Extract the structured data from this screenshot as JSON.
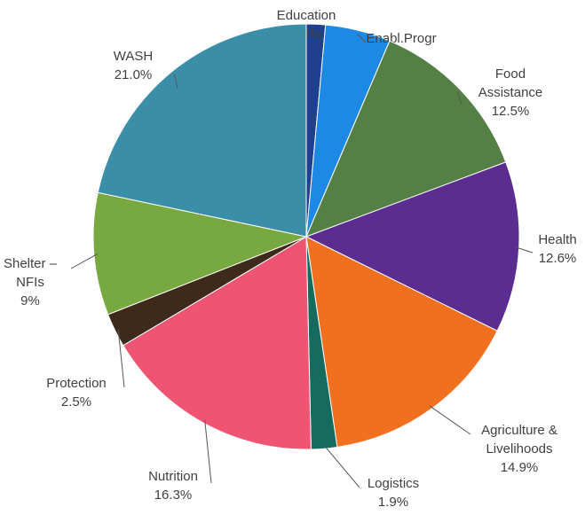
{
  "chart_data": {
    "type": "pie",
    "categories": [
      "Education",
      "Enabl.Progr",
      "Food\nAssistance",
      "Health",
      "Agriculture &\nLivelihoods",
      "Logistics",
      "Nutrition",
      "Protection",
      "Shelter –\nNFIs",
      "WASH"
    ],
    "values": [
      1.4,
      4.8,
      12.5,
      12.6,
      14.9,
      1.9,
      16.3,
      2.5,
      9,
      21.0
    ],
    "value_labels": [
      "1.4%",
      "4.8%",
      "12.5%",
      "12.6%",
      "14.9%",
      "1.9%",
      "16.3%",
      "2.5%",
      "9%",
      "21.0%"
    ],
    "colors": [
      "#1f3f8f",
      "#1e88e5",
      "#548045",
      "#5b2d91",
      "#f07020",
      "#146b5e",
      "#ef5573",
      "#3e2a1a",
      "#78a840",
      "#3a8ea8"
    ]
  }
}
